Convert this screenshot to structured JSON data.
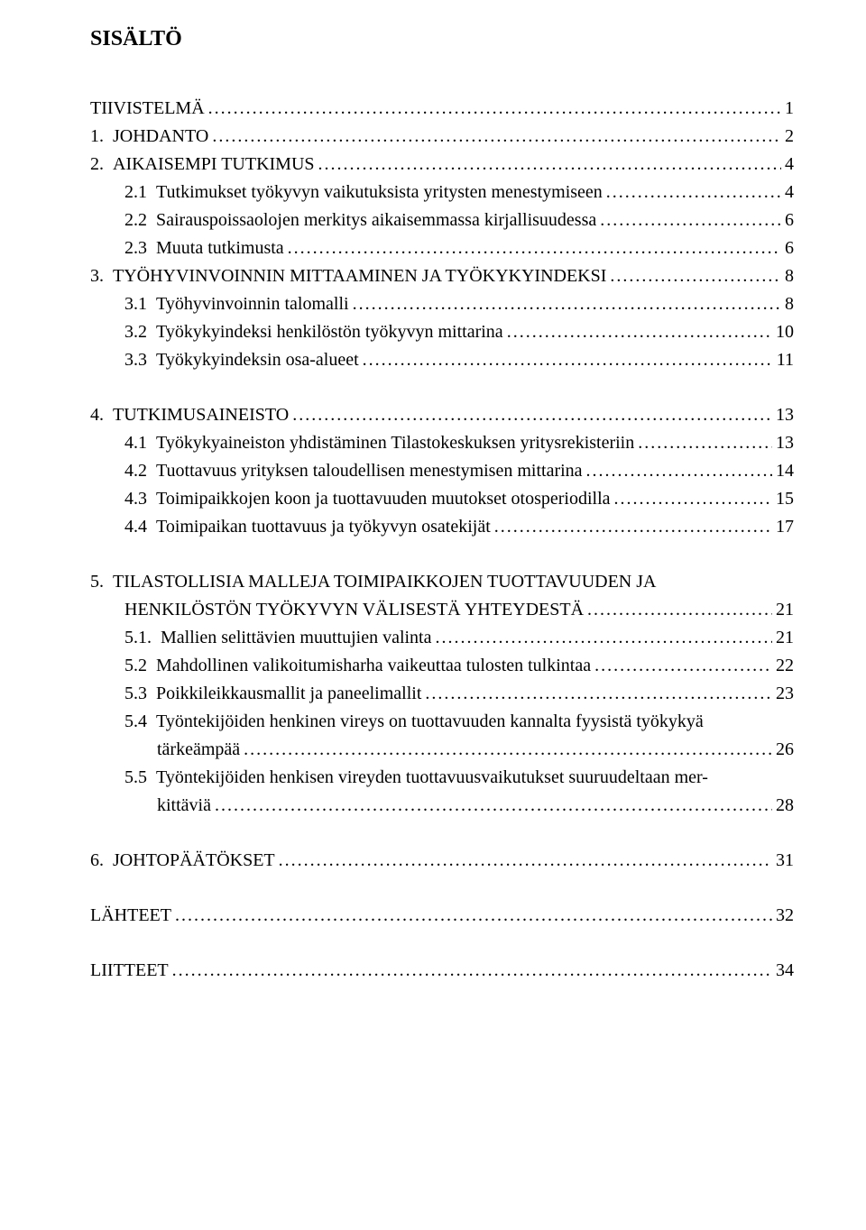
{
  "title": "SISÄLTÖ",
  "dots": "..............................................................................................................................................................................................................",
  "entries": [
    {
      "type": "single",
      "indent": 0,
      "num": "",
      "label": "TIIVISTELMÄ",
      "page": "1",
      "space_after": false
    },
    {
      "type": "single",
      "indent": 0,
      "num": "1.",
      "label": "JOHDANTO",
      "page": "2",
      "space_after": false
    },
    {
      "type": "single",
      "indent": 0,
      "num": "2.",
      "label": "AIKAISEMPI TUTKIMUS",
      "page": "4",
      "space_after": false
    },
    {
      "type": "single",
      "indent": 1,
      "num": "2.1",
      "label": "Tutkimukset työkyvyn vaikutuksista yritysten menestymiseen",
      "page": "4",
      "space_after": false
    },
    {
      "type": "single",
      "indent": 1,
      "num": "2.2",
      "label": "Sairauspoissaolojen merkitys aikaisemmassa kirjallisuudessa",
      "page": "6",
      "space_after": false
    },
    {
      "type": "single",
      "indent": 1,
      "num": "2.3",
      "label": "Muuta tutkimusta",
      "page": "6",
      "space_after": false
    },
    {
      "type": "single",
      "indent": 0,
      "num": "3.",
      "label": "TYÖHYVINVOINNIN MITTAAMINEN JA TYÖKYKYINDEKSI",
      "page": "8",
      "space_after": false
    },
    {
      "type": "single",
      "indent": 1,
      "num": "3.1",
      "label": "Työhyvinvoinnin talomalli",
      "page": "8",
      "space_after": false
    },
    {
      "type": "single",
      "indent": 1,
      "num": "3.2",
      "label": "Työkykyindeksi henkilöstön työkyvyn mittarina",
      "page": "10",
      "space_after": false
    },
    {
      "type": "single",
      "indent": 1,
      "num": "3.3",
      "label": "Työkykyindeksin osa-alueet",
      "page": "11",
      "space_after": true
    },
    {
      "type": "single",
      "indent": 0,
      "num": "4.",
      "label": "TUTKIMUSAINEISTO",
      "page": "13",
      "space_after": false
    },
    {
      "type": "single",
      "indent": 1,
      "num": "4.1",
      "label": "Työkykyaineiston yhdistäminen Tilastokeskuksen yritysrekisteriin",
      "page": "13",
      "space_after": false
    },
    {
      "type": "single",
      "indent": 1,
      "num": "4.2",
      "label": "Tuottavuus yrityksen taloudellisen menestymisen mittarina",
      "page": "14",
      "space_after": false
    },
    {
      "type": "single",
      "indent": 1,
      "num": "4.3",
      "label": "Toimipaikkojen koon ja tuottavuuden muutokset otosperiodilla",
      "page": "15",
      "space_after": false
    },
    {
      "type": "single",
      "indent": 1,
      "num": "4.4",
      "label": "Toimipaikan tuottavuus ja työkyvyn osatekijät",
      "page": "17",
      "space_after": true
    },
    {
      "type": "multi",
      "indent": 0,
      "num": "5.",
      "label1": "TILASTOLLISIA MALLEJA TOIMIPAIKKOJEN TUOTTAVUUDEN JA",
      "label2": "HENKILÖSTÖN TYÖKYVYN VÄLISESTÄ YHTEYDESTÄ",
      "page": "21",
      "space_after": false
    },
    {
      "type": "single",
      "indent": 1,
      "num": "5.1.",
      "label": "Mallien selittävien muuttujien valinta",
      "page": "21",
      "space_after": false
    },
    {
      "type": "single",
      "indent": 1,
      "num": "5.2",
      "label": "Mahdollinen valikoitumisharha vaikeuttaa tulosten tulkintaa",
      "page": "22",
      "space_after": false
    },
    {
      "type": "single",
      "indent": 1,
      "num": "5.3",
      "label": "Poikkileikkausmallit ja paneelimallit",
      "page": "23",
      "space_after": false
    },
    {
      "type": "multi",
      "indent": 1,
      "num": "5.4",
      "label1": "Työntekijöiden henkinen vireys on tuottavuuden kannalta fyysistä työkykyä",
      "label2": "tärkeämpää",
      "page": "26",
      "space_after": false
    },
    {
      "type": "multi",
      "indent": 1,
      "num": "5.5",
      "label1": "Työntekijöiden henkisen vireyden tuottavuusvaikutukset suuruudeltaan mer-",
      "label2": "kittäviä",
      "page": "28",
      "space_after": true
    },
    {
      "type": "single",
      "indent": 0,
      "num": "6.",
      "label": "JOHTOPÄÄTÖKSET",
      "page": "31",
      "space_after": true
    },
    {
      "type": "single",
      "indent": 0,
      "num": "",
      "label": "LÄHTEET",
      "page": "32",
      "space_after": true
    },
    {
      "type": "single",
      "indent": 0,
      "num": "",
      "label": "LIITTEET",
      "page": "34",
      "space_after": false
    }
  ]
}
